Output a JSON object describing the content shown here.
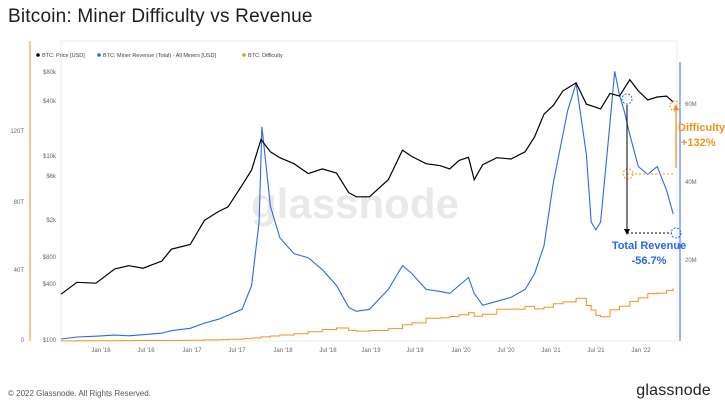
{
  "title": "Bitcoin: Miner Difficulty vs Revenue",
  "footer": {
    "copyright": "© 2022 Glassnode. All Rights Reserved.",
    "logo": "glassnode"
  },
  "watermark": "glassnode",
  "chart_data": {
    "type": "line",
    "legend": [
      {
        "name": "BTC: Price [USD]",
        "color": "#000000"
      },
      {
        "name": "BTC: Miner Revenue (Total) - All Miners [USD]",
        "color": "#2c68e8"
      },
      {
        "name": "BTC: Difficulty",
        "color": "#f0931e"
      }
    ],
    "legend_position": "top-left",
    "grid": false,
    "x_ticks": [
      "Jan '16",
      "Jul '16",
      "Jan '17",
      "Jul '17",
      "Jan '18",
      "Jul '18",
      "Jan '19",
      "Jul '19",
      "Jan '20",
      "Jul '20",
      "Jan '21",
      "Jul '21",
      "Jan '22"
    ],
    "y_left_outer_ticks": [
      "120T",
      "80T",
      "40T",
      "0"
    ],
    "y_left_inner_ticks": [
      "$80k",
      "$40k",
      "$10k",
      "$6k",
      "$2k",
      "$800",
      "$400",
      "$100"
    ],
    "y_right_ticks": [
      "60M",
      "40M",
      "20M"
    ],
    "price_log_scale": true,
    "series": [
      {
        "name": "BTC: Price [USD]",
        "axis": "price",
        "x": [
          2015.83,
          2016.0,
          2016.2,
          2016.4,
          2016.55,
          2016.7,
          2016.9,
          2017.0,
          2017.2,
          2017.35,
          2017.5,
          2017.6,
          2017.75,
          2017.85,
          2017.95,
          2018.05,
          2018.15,
          2018.3,
          2018.45,
          2018.6,
          2018.75,
          2018.88,
          2018.96,
          2019.1,
          2019.3,
          2019.45,
          2019.55,
          2019.7,
          2019.85,
          2019.95,
          2020.05,
          2020.15,
          2020.21,
          2020.3,
          2020.45,
          2020.6,
          2020.75,
          2020.85,
          2020.95,
          2021.05,
          2021.15,
          2021.29,
          2021.4,
          2021.55,
          2021.65,
          2021.75,
          2021.86,
          2021.95,
          2022.05,
          2022.15,
          2022.25,
          2022.32
        ],
        "y": [
          320,
          430,
          420,
          600,
          650,
          610,
          730,
          980,
          1100,
          2000,
          2500,
          2800,
          4800,
          7000,
          15000,
          11000,
          9500,
          8200,
          6400,
          7200,
          6500,
          4000,
          3600,
          3600,
          5500,
          11500,
          9800,
          8200,
          7800,
          7200,
          8900,
          9600,
          5500,
          8000,
          9500,
          9200,
          11000,
          16000,
          28000,
          35000,
          50000,
          61000,
          36000,
          32000,
          47000,
          44000,
          66000,
          50000,
          40000,
          43000,
          44000,
          38000
        ]
      },
      {
        "name": "BTC: Miner Revenue (Total) - All Miners [USD]",
        "axis": "revenue",
        "x": [
          2015.83,
          2016.0,
          2016.2,
          2016.4,
          2016.55,
          2016.7,
          2016.9,
          2017.0,
          2017.2,
          2017.35,
          2017.5,
          2017.6,
          2017.75,
          2017.85,
          2017.93,
          2017.96,
          2018.05,
          2018.15,
          2018.3,
          2018.45,
          2018.6,
          2018.75,
          2018.88,
          2018.96,
          2019.1,
          2019.3,
          2019.45,
          2019.55,
          2019.7,
          2019.85,
          2019.95,
          2020.05,
          2020.15,
          2020.21,
          2020.3,
          2020.45,
          2020.6,
          2020.75,
          2020.85,
          2020.95,
          2021.05,
          2021.15,
          2021.2,
          2021.29,
          2021.4,
          2021.45,
          2021.5,
          2021.55,
          2021.65,
          2021.7,
          2021.75,
          2021.8,
          2021.86,
          2021.95,
          2022.05,
          2022.15,
          2022.25,
          2022.32
        ],
        "y": [
          0.5,
          1.0,
          1.2,
          1.5,
          1.3,
          1.6,
          2.0,
          2.6,
          3.2,
          4.5,
          5.5,
          6.5,
          8.0,
          14.0,
          30.0,
          54.0,
          34.0,
          26.0,
          22.0,
          21.0,
          18.0,
          14.0,
          8.5,
          7.5,
          8.0,
          13.0,
          19.0,
          17.0,
          13.0,
          12.5,
          12.0,
          14.0,
          16.0,
          12.0,
          9.0,
          10.0,
          11.0,
          13.0,
          17.0,
          24.0,
          40.0,
          52.0,
          58.0,
          65.0,
          47.0,
          30.0,
          28.0,
          30.0,
          55.0,
          68.0,
          62.0,
          58.0,
          52.0,
          44.0,
          42.0,
          44.0,
          38.0,
          32.0
        ]
      },
      {
        "name": "BTC: Difficulty",
        "axis": "difficulty",
        "step": true,
        "x": [
          2015.83,
          2016.0,
          2016.2,
          2016.4,
          2016.55,
          2016.7,
          2016.9,
          2017.0,
          2017.2,
          2017.35,
          2017.5,
          2017.6,
          2017.75,
          2017.85,
          2017.95,
          2018.05,
          2018.15,
          2018.3,
          2018.45,
          2018.6,
          2018.75,
          2018.88,
          2018.96,
          2019.1,
          2019.3,
          2019.45,
          2019.55,
          2019.7,
          2019.85,
          2019.95,
          2020.05,
          2020.15,
          2020.21,
          2020.3,
          2020.45,
          2020.6,
          2020.75,
          2020.85,
          2020.95,
          2021.05,
          2021.15,
          2021.29,
          2021.4,
          2021.45,
          2021.5,
          2021.55,
          2021.65,
          2021.75,
          2021.86,
          2021.95,
          2022.05,
          2022.15,
          2022.25,
          2022.32
        ],
        "y": [
          0.06,
          0.11,
          0.16,
          0.21,
          0.22,
          0.26,
          0.32,
          0.34,
          0.47,
          0.6,
          0.8,
          0.95,
          1.3,
          1.7,
          2.3,
          2.8,
          3.4,
          4.1,
          5.2,
          6.5,
          7.3,
          6.0,
          5.6,
          5.9,
          7.0,
          9.1,
          10.2,
          12.8,
          13.1,
          13.8,
          14.8,
          15.9,
          13.9,
          15.1,
          17.9,
          18.0,
          19.5,
          18.1,
          19.0,
          21.0,
          22.0,
          24.0,
          20.0,
          17.5,
          14.4,
          13.7,
          17.6,
          19.6,
          22.3,
          24.3,
          26.7,
          27.0,
          28.5,
          29.8
        ]
      }
    ],
    "annotations": [
      {
        "label": "Difficulty",
        "value": "+132%"
      },
      {
        "label": "Total Revenue",
        "value": "-56.7%"
      }
    ]
  }
}
